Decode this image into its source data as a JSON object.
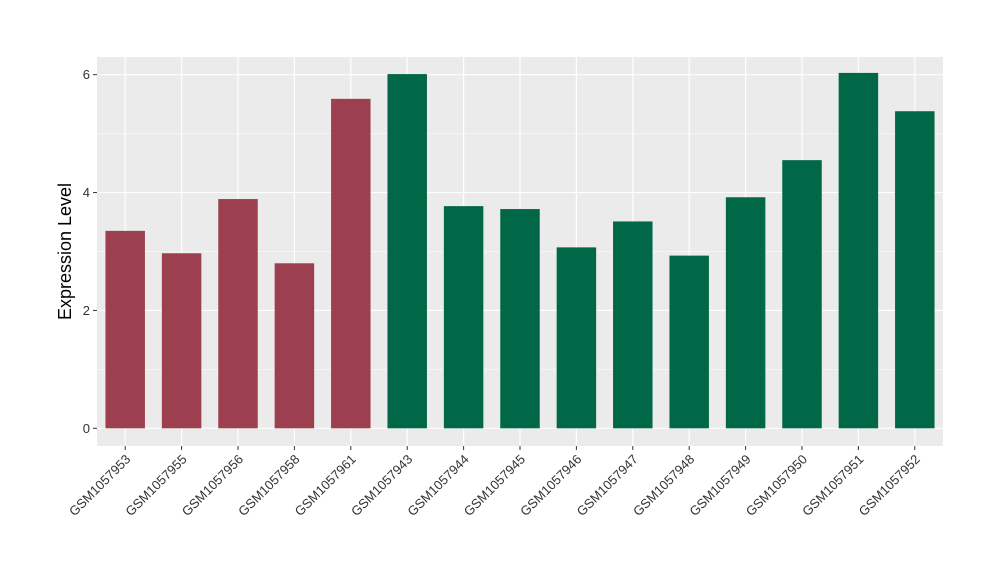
{
  "chart_data": {
    "type": "bar",
    "ylabel": "Expression Level",
    "xlabel": "",
    "categories": [
      "GSM1057953",
      "GSM1057955",
      "GSM1057956",
      "GSM1057958",
      "GSM1057961",
      "GSM1057943",
      "GSM1057944",
      "GSM1057945",
      "GSM1057946",
      "GSM1057947",
      "GSM1057948",
      "GSM1057949",
      "GSM1057950",
      "GSM1057951",
      "GSM1057952"
    ],
    "values": [
      3.35,
      2.97,
      3.89,
      2.8,
      5.59,
      6.01,
      3.77,
      3.72,
      3.07,
      3.51,
      2.93,
      3.92,
      4.55,
      6.03,
      5.38
    ],
    "bar_colors": [
      "#9c4050",
      "#9c4050",
      "#9c4050",
      "#9c4050",
      "#9c4050",
      "#006846",
      "#006846",
      "#006846",
      "#006846",
      "#006846",
      "#006846",
      "#006846",
      "#006846",
      "#006846",
      "#006846"
    ],
    "y_ticks": [
      0,
      2,
      4,
      6
    ],
    "ylim": [
      -0.3,
      6.3
    ],
    "grid": true,
    "panel_background": "#ebebeb",
    "grid_color": "#ffffff"
  }
}
